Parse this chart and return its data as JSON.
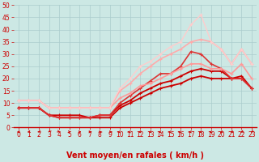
{
  "xlabel": "Vent moyen/en rafales ( km/h )",
  "bg_color": "#cce8e4",
  "grid_color": "#aacccc",
  "xlim": [
    -0.5,
    23.5
  ],
  "ylim": [
    0,
    50
  ],
  "yticks": [
    0,
    5,
    10,
    15,
    20,
    25,
    30,
    35,
    40,
    45,
    50
  ],
  "xticks": [
    0,
    1,
    2,
    3,
    4,
    5,
    6,
    7,
    8,
    9,
    10,
    11,
    12,
    13,
    14,
    15,
    16,
    17,
    18,
    19,
    20,
    21,
    22,
    23
  ],
  "series": [
    {
      "x": [
        0,
        1,
        2,
        3,
        4,
        5,
        6,
        7,
        8,
        9,
        10,
        11,
        12,
        13,
        14,
        15,
        16,
        17,
        18,
        19,
        20,
        21,
        22,
        23
      ],
      "y": [
        8,
        8,
        8,
        5,
        5,
        5,
        5,
        4,
        4,
        4,
        8,
        10,
        12,
        14,
        16,
        17,
        18,
        20,
        21,
        20,
        20,
        20,
        20,
        16
      ],
      "color": "#cc0000",
      "lw": 1.3,
      "marker": "+",
      "ms": 3.5
    },
    {
      "x": [
        0,
        1,
        2,
        3,
        4,
        5,
        6,
        7,
        8,
        9,
        10,
        11,
        12,
        13,
        14,
        15,
        16,
        17,
        18,
        19,
        20,
        21,
        22,
        23
      ],
      "y": [
        8,
        8,
        8,
        5,
        4,
        4,
        4,
        4,
        5,
        5,
        9,
        11,
        14,
        16,
        18,
        19,
        21,
        23,
        24,
        23,
        23,
        20,
        21,
        16
      ],
      "color": "#cc0000",
      "lw": 1.3,
      "marker": "+",
      "ms": 3.5
    },
    {
      "x": [
        0,
        1,
        2,
        3,
        4,
        5,
        6,
        7,
        8,
        9,
        10,
        11,
        12,
        13,
        14,
        15,
        16,
        17,
        18,
        19,
        20,
        21,
        22,
        23
      ],
      "y": [
        8,
        8,
        8,
        5,
        4,
        4,
        4,
        4,
        5,
        5,
        10,
        13,
        16,
        19,
        22,
        22,
        25,
        31,
        30,
        26,
        24,
        20,
        20,
        16
      ],
      "color": "#dd3333",
      "lw": 1.2,
      "marker": "+",
      "ms": 3.5
    },
    {
      "x": [
        0,
        1,
        2,
        3,
        4,
        5,
        6,
        7,
        8,
        9,
        10,
        11,
        12,
        13,
        14,
        15,
        16,
        17,
        18,
        19,
        20,
        21,
        22,
        23
      ],
      "y": [
        11,
        11,
        11,
        8,
        8,
        8,
        8,
        8,
        8,
        8,
        12,
        14,
        17,
        18,
        20,
        22,
        24,
        26,
        26,
        24,
        24,
        22,
        26,
        20
      ],
      "color": "#ff9999",
      "lw": 1.2,
      "marker": "+",
      "ms": 3.5
    },
    {
      "x": [
        0,
        1,
        2,
        3,
        4,
        5,
        6,
        7,
        8,
        9,
        10,
        11,
        12,
        13,
        14,
        15,
        16,
        17,
        18,
        19,
        20,
        21,
        22,
        23
      ],
      "y": [
        11,
        11,
        11,
        8,
        8,
        8,
        8,
        8,
        8,
        8,
        15,
        18,
        22,
        25,
        28,
        30,
        32,
        35,
        36,
        35,
        32,
        26,
        32,
        26
      ],
      "color": "#ffaaaa",
      "lw": 1.2,
      "marker": "+",
      "ms": 3.5
    },
    {
      "x": [
        0,
        1,
        2,
        3,
        4,
        5,
        6,
        7,
        8,
        9,
        10,
        11,
        12,
        13,
        14,
        15,
        16,
        17,
        18,
        19,
        20,
        21,
        22,
        23
      ],
      "y": [
        11,
        11,
        11,
        8,
        8,
        8,
        8,
        8,
        8,
        8,
        16,
        20,
        25,
        27,
        30,
        33,
        35,
        42,
        46,
        35,
        32,
        26,
        32,
        26
      ],
      "color": "#ffcccc",
      "lw": 1.0,
      "marker": "+",
      "ms": 3.0
    }
  ],
  "wind_angles": [
    -135,
    -120,
    -110,
    -100,
    -70,
    -50,
    -40,
    -30,
    -20,
    -10,
    -170,
    -155,
    -145,
    -135,
    -150,
    -160,
    -160,
    -155,
    -150,
    -140,
    -130,
    -120,
    -115,
    -110
  ],
  "xlabel_color": "#cc0000",
  "xlabel_fontsize": 7,
  "tick_fontsize": 5.5,
  "tick_color": "#cc0000"
}
